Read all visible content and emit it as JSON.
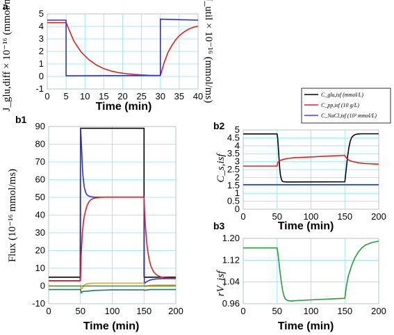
{
  "panels": {
    "a": "a",
    "b1": "b1",
    "b2": "b2",
    "b3": "b3"
  },
  "axis_titles": {
    "time": "Time (min)",
    "flux": "Flux  (10⁻¹⁶ mmol/ms)",
    "a_left": "J_glu,diff × 10⁻¹⁶ (mmol/ms)",
    "a_right": "J_util × 10⁻¹⁶ (mmol/ms)",
    "b2_y": "C_s,isf",
    "b3_y": "rV_isf"
  },
  "legend": [
    {
      "label": "C_glu,isf (mmol/L)",
      "color": "#000000"
    },
    {
      "label": "C_pp,isf (10 g/L)",
      "color": "#e0201c"
    },
    {
      "label": "C_NaCl,isf (10² mmol/L)",
      "color": "#4444cc"
    }
  ],
  "colors": {
    "grid": "#8fe3ee",
    "black": "#000000",
    "red": "#e0201c",
    "blue": "#3030c8",
    "orange": "#f5a020",
    "green": "#2a9a3a",
    "teal": "#1f7a6a"
  },
  "chart_data": [
    {
      "id": "a",
      "type": "line",
      "xlim": [
        0,
        40
      ],
      "ylim": [
        -1,
        5
      ],
      "xticks": [
        "0",
        "5",
        "10",
        "15",
        "20",
        "25",
        "30",
        "35",
        "40"
      ],
      "yticks": [
        "-1",
        "0",
        "1",
        "2",
        "3",
        "4",
        "5"
      ],
      "series": [
        {
          "color": "red",
          "x": [
            0,
            5,
            7,
            9,
            11,
            13,
            15,
            17,
            19,
            21,
            23,
            25,
            27,
            29,
            30,
            31,
            32,
            33,
            34,
            35,
            36,
            37,
            38,
            39,
            40
          ],
          "y": [
            4.3,
            4.3,
            2.85,
            1.95,
            1.35,
            0.92,
            0.62,
            0.43,
            0.3,
            0.22,
            0.16,
            0.12,
            0.09,
            0.07,
            0.07,
            1.1,
            1.9,
            2.45,
            2.9,
            3.25,
            3.5,
            3.7,
            3.85,
            3.95,
            4.02
          ]
        },
        {
          "color": "blue",
          "x": [
            0,
            5,
            5,
            30,
            30,
            40
          ],
          "y": [
            4.5,
            4.5,
            0.05,
            0.08,
            4.58,
            4.5
          ]
        }
      ]
    },
    {
      "id": "b1",
      "type": "line",
      "xlim": [
        0,
        200
      ],
      "ylim": [
        -10,
        90
      ],
      "xticks": [
        "0",
        "50",
        "100",
        "150",
        "200"
      ],
      "yticks": [
        "-10",
        "0",
        "10",
        "20",
        "30",
        "40",
        "50",
        "60",
        "70",
        "80",
        "90"
      ],
      "series": [
        {
          "color": "black",
          "x": [
            0,
            50,
            50,
            150,
            150,
            200
          ],
          "y": [
            5,
            5,
            89,
            89,
            5,
            5
          ]
        },
        {
          "color": "blue",
          "x": [
            0,
            49.5,
            50,
            51,
            52,
            53,
            54,
            56,
            58,
            60,
            63,
            66,
            70,
            80,
            150,
            150.5,
            151,
            152,
            154,
            157,
            160,
            165,
            170,
            180,
            200
          ],
          "y": [
            3,
            3,
            89,
            84,
            76,
            68,
            62,
            56,
            53,
            51.5,
            50.8,
            50.4,
            50.2,
            50.1,
            50.1,
            2,
            1.5,
            1.8,
            2.4,
            3,
            3.4,
            3.8,
            4,
            4.2,
            4.2
          ]
        },
        {
          "color": "red",
          "x": [
            0,
            50,
            51,
            53,
            55,
            57,
            60,
            63,
            66,
            70,
            75,
            80,
            90,
            150,
            151,
            153,
            155,
            158,
            161,
            165,
            170,
            175,
            180,
            190,
            200
          ],
          "y": [
            3,
            3,
            17,
            30,
            37,
            41,
            45,
            47.3,
            48.6,
            49.4,
            49.8,
            50,
            50.1,
            50.1,
            40,
            30,
            22,
            15,
            11,
            8,
            6.2,
            5.3,
            4.9,
            4.6,
            4.5
          ]
        },
        {
          "color": "orange",
          "x": [
            0,
            50,
            51,
            53,
            56,
            60,
            65,
            75,
            90,
            150,
            150.5,
            152,
            156,
            160,
            170,
            200
          ],
          "y": [
            0,
            0,
            -1.8,
            -1.2,
            0.5,
            1.2,
            1.5,
            1.6,
            1.6,
            1.6,
            0.3,
            -0.2,
            0.2,
            0.4,
            0.5,
            0.5
          ]
        },
        {
          "color": "green",
          "x": [
            0,
            200
          ],
          "y": [
            0,
            0
          ]
        },
        {
          "color": "teal",
          "x": [
            0,
            50,
            50.5,
            51,
            52,
            55,
            60,
            70,
            100,
            150,
            150.5,
            152,
            160,
            200
          ],
          "y": [
            -2,
            -2,
            -2.5,
            -4,
            -3.5,
            -3,
            -3,
            -2.5,
            -2.2,
            -2.2,
            -2.5,
            -2.3,
            -2,
            -2
          ]
        }
      ]
    },
    {
      "id": "b2",
      "type": "line",
      "xlim": [
        0,
        200
      ],
      "ylim": [
        0,
        5
      ],
      "xticks": [
        "0",
        "50",
        "100",
        "150",
        "200"
      ],
      "yticks": [
        "0",
        "0.5",
        "1",
        "1.5",
        "2",
        "2.5",
        "3",
        "3.5",
        "4",
        "4.5",
        "5"
      ],
      "series": [
        {
          "color": "black",
          "x": [
            0,
            50,
            51,
            52,
            53,
            54,
            55,
            56,
            57,
            58,
            60,
            65,
            70,
            150,
            152,
            154,
            156,
            158,
            160,
            163,
            166,
            170,
            175,
            200
          ],
          "y": [
            4.75,
            4.75,
            4.45,
            3.8,
            3.1,
            2.55,
            2.15,
            1.95,
            1.82,
            1.76,
            1.73,
            1.72,
            1.72,
            1.73,
            2.5,
            3.3,
            3.9,
            4.3,
            4.52,
            4.66,
            4.72,
            4.75,
            4.76,
            4.76
          ]
        },
        {
          "color": "red",
          "x": [
            0,
            50,
            51,
            53,
            56,
            60,
            65,
            75,
            100,
            125,
            150,
            151,
            155,
            160,
            170,
            180,
            200
          ],
          "y": [
            2.72,
            2.72,
            2.95,
            3.05,
            3.1,
            3.15,
            3.2,
            3.25,
            3.3,
            3.35,
            3.4,
            3.3,
            3.12,
            3.02,
            2.93,
            2.88,
            2.84
          ]
        },
        {
          "color": "blue",
          "x": [
            0,
            200
          ],
          "y": [
            1.55,
            1.55
          ]
        }
      ]
    },
    {
      "id": "b3",
      "type": "line",
      "xlim": [
        0,
        200
      ],
      "ylim": [
        0.96,
        1.2
      ],
      "xticks": [
        "0",
        "50",
        "100",
        "150",
        "200"
      ],
      "yticks": [
        "0.96",
        "1.04",
        "1.12",
        "1.20"
      ],
      "series": [
        {
          "color": "green",
          "x": [
            0,
            50,
            52,
            54,
            56,
            58,
            60,
            62,
            65,
            70,
            75,
            100,
            125,
            150,
            152,
            155,
            160,
            165,
            170,
            175,
            180,
            190,
            200
          ],
          "y": [
            1.165,
            1.165,
            1.13,
            1.085,
            1.045,
            1.01,
            0.99,
            0.978,
            0.972,
            0.97,
            0.971,
            0.974,
            0.977,
            0.98,
            1.02,
            1.06,
            1.1,
            1.13,
            1.15,
            1.165,
            1.175,
            1.185,
            1.19
          ]
        }
      ]
    }
  ]
}
